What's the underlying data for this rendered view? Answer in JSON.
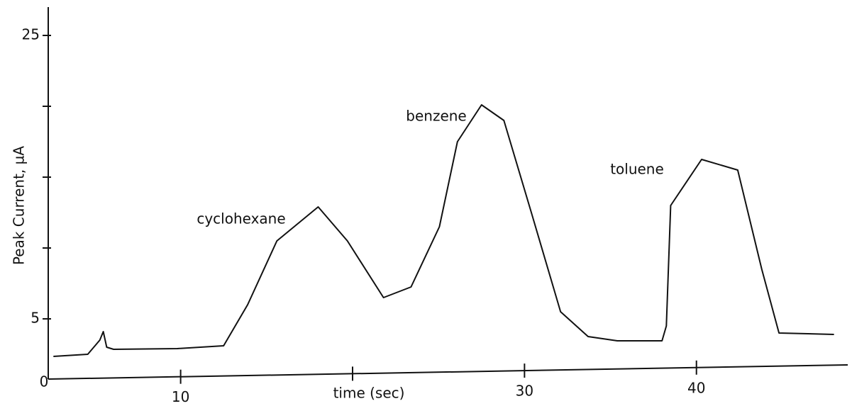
{
  "chart_data": {
    "type": "line",
    "x_label": "time (sec)",
    "y_label": "Peak Current, µA",
    "origin_label": "0",
    "x": [
      2.6,
      4.6,
      5.3,
      5.5,
      5.7,
      6.1,
      9.8,
      12.5,
      13.9,
      15.6,
      18.0,
      19.7,
      21.8,
      23.4,
      25.05,
      26.1,
      27.5,
      28.8,
      30.4,
      32.1,
      33.7,
      35.4,
      38.0,
      38.25,
      38.5,
      40.3,
      42.4,
      43.8,
      44.8,
      48.0
    ],
    "values": [
      2.35,
      2.5,
      3.5,
      4.1,
      3.0,
      2.85,
      2.9,
      3.1,
      6,
      10.5,
      12.9,
      10.5,
      6.5,
      7.25,
      11.5,
      17.5,
      20.1,
      19,
      12.5,
      5.5,
      3.75,
      3.45,
      3.45,
      4.5,
      13,
      16.25,
      15.5,
      8.5,
      4,
      3.9
    ],
    "color": "#111111",
    "annotations": [
      "cyclohexane",
      "benzene",
      "toluene"
    ],
    "xlim": [
      2.3,
      48.8
    ],
    "ylim": [
      0.75,
      27
    ],
    "xticks": [
      10,
      30,
      40
    ],
    "xticks_unlabeled": [
      20
    ],
    "yticks": [
      5,
      25
    ],
    "yticks_unlabeled": [
      10,
      15,
      20
    ]
  }
}
